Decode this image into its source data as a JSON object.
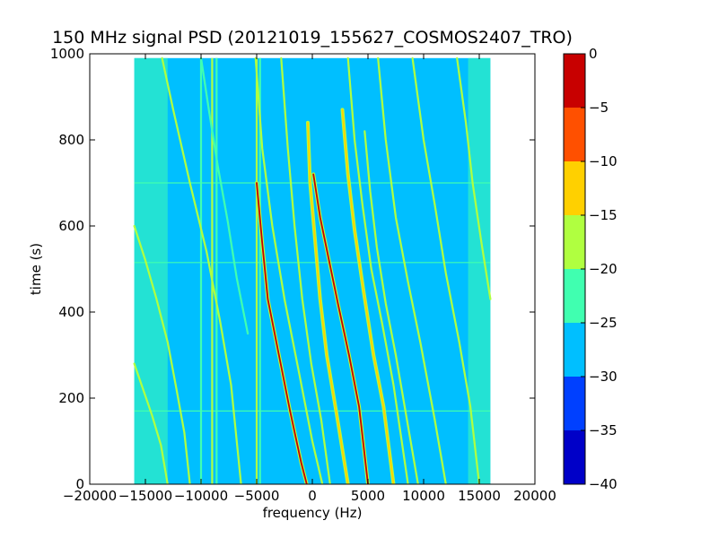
{
  "chart_data": {
    "type": "heatmap",
    "title": "150 MHz signal PSD (20121019_155627_COSMOS2407_TRO)",
    "xlabel": "frequency (Hz)",
    "ylabel": "time (s)",
    "xlim": [
      -20000,
      20000
    ],
    "ylim": [
      0,
      1000
    ],
    "x_ticks": [
      -20000,
      -15000,
      -10000,
      -5000,
      0,
      5000,
      10000,
      15000,
      20000
    ],
    "y_ticks": [
      0,
      200,
      400,
      600,
      800,
      1000
    ],
    "data_extent": {
      "x": [
        -16000,
        16000
      ],
      "y": [
        0,
        990
      ]
    },
    "background_level": -27.5,
    "edge_bands": [
      {
        "x": [
          -16000,
          -13000
        ],
        "level": -22.5
      },
      {
        "x": [
          14000,
          16000
        ],
        "level": -22.5
      }
    ],
    "traces": [
      {
        "points": [
          [
            -5100,
            990
          ],
          [
            -4500,
            780
          ],
          [
            -3600,
            600
          ],
          [
            -2500,
            430
          ],
          [
            -1200,
            260
          ],
          [
            0,
            100
          ],
          [
            900,
            0
          ]
        ],
        "level": -17.5
      },
      {
        "points": [
          [
            -5000,
            700
          ],
          [
            -4500,
            560
          ],
          [
            -4000,
            430
          ],
          [
            -3000,
            300
          ],
          [
            -2000,
            170
          ],
          [
            -1000,
            50
          ],
          [
            -500,
            0
          ]
        ],
        "level": -2.5
      },
      {
        "points": [
          [
            -2800,
            990
          ],
          [
            -2200,
            780
          ],
          [
            -1600,
            600
          ],
          [
            -900,
            430
          ],
          [
            -100,
            280
          ],
          [
            800,
            150
          ],
          [
            1600,
            0
          ]
        ],
        "level": -17.5
      },
      {
        "points": [
          [
            -400,
            840
          ],
          [
            -200,
            700
          ],
          [
            200,
            580
          ],
          [
            700,
            430
          ],
          [
            1300,
            300
          ],
          [
            2200,
            160
          ],
          [
            3200,
            0
          ]
        ],
        "level": -12.5
      },
      {
        "points": [
          [
            100,
            720
          ],
          [
            700,
            620
          ],
          [
            1500,
            520
          ],
          [
            2300,
            420
          ],
          [
            3300,
            300
          ],
          [
            4200,
            180
          ],
          [
            5000,
            0
          ]
        ],
        "level": -2.5
      },
      {
        "points": [
          [
            2700,
            870
          ],
          [
            3200,
            720
          ],
          [
            3800,
            590
          ],
          [
            4600,
            450
          ],
          [
            5500,
            300
          ],
          [
            6400,
            180
          ],
          [
            7300,
            0
          ]
        ],
        "level": -12.5
      },
      {
        "points": [
          [
            3200,
            990
          ],
          [
            3800,
            800
          ],
          [
            4500,
            650
          ],
          [
            5300,
            500
          ],
          [
            6300,
            370
          ],
          [
            7300,
            230
          ],
          [
            8600,
            0
          ]
        ],
        "level": -17.5
      },
      {
        "points": [
          [
            4700,
            820
          ],
          [
            5200,
            680
          ],
          [
            5800,
            550
          ],
          [
            6600,
            420
          ],
          [
            7500,
            300
          ],
          [
            8500,
            150
          ],
          [
            9500,
            0
          ]
        ],
        "level": -17.5
      },
      {
        "points": [
          [
            5900,
            990
          ],
          [
            6600,
            800
          ],
          [
            7500,
            620
          ],
          [
            8600,
            470
          ],
          [
            9700,
            330
          ],
          [
            11000,
            150
          ],
          [
            12000,
            0
          ]
        ],
        "level": -17.5
      },
      {
        "points": [
          [
            9000,
            990
          ],
          [
            10000,
            800
          ],
          [
            11000,
            650
          ],
          [
            12000,
            490
          ],
          [
            13200,
            330
          ],
          [
            14200,
            180
          ],
          [
            15000,
            0
          ]
        ],
        "level": -17.5
      },
      {
        "points": [
          [
            13000,
            990
          ],
          [
            13800,
            840
          ],
          [
            14400,
            700
          ],
          [
            15200,
            560
          ],
          [
            16000,
            430
          ]
        ],
        "level": -17.5
      },
      {
        "points": [
          [
            -13500,
            990
          ],
          [
            -12500,
            870
          ],
          [
            -11000,
            700
          ],
          [
            -9500,
            540
          ],
          [
            -8300,
            380
          ],
          [
            -7300,
            230
          ],
          [
            -6400,
            0
          ]
        ],
        "level": -17.5
      },
      {
        "points": [
          [
            -16000,
            600
          ],
          [
            -15000,
            520
          ],
          [
            -14000,
            430
          ],
          [
            -13000,
            330
          ],
          [
            -12200,
            220
          ],
          [
            -11500,
            120
          ],
          [
            -11000,
            0
          ]
        ],
        "level": -17.5
      },
      {
        "points": [
          [
            -16000,
            280
          ],
          [
            -15200,
            220
          ],
          [
            -14400,
            160
          ],
          [
            -13600,
            90
          ],
          [
            -13000,
            0
          ]
        ],
        "level": -17.5
      },
      {
        "points": [
          [
            -10000,
            990
          ],
          [
            -9300,
            870
          ],
          [
            -8500,
            740
          ],
          [
            -7600,
            610
          ],
          [
            -6800,
            480
          ],
          [
            -5800,
            350
          ]
        ],
        "level": -22.5
      }
    ],
    "vertical_lines": [
      {
        "x": -10000,
        "level": -22.5
      },
      {
        "x": -9000,
        "level": -17.5
      },
      {
        "x": -8600,
        "level": -22.5
      },
      {
        "x": -5000,
        "level": -17.5
      },
      {
        "x": -4700,
        "level": -22.5
      }
    ],
    "horizontal_lines": [
      {
        "y": 170,
        "level": -22.5
      },
      {
        "y": 515,
        "level": -22.5
      },
      {
        "y": 700,
        "level": -22.5
      }
    ],
    "colorbar": {
      "min": -40,
      "max": 0,
      "ticks": [
        -40,
        -35,
        -30,
        -25,
        -20,
        -15,
        -10,
        -5,
        0
      ],
      "bands": [
        {
          "from": -40,
          "to": -35,
          "color": "#0000c8"
        },
        {
          "from": -35,
          "to": -30,
          "color": "#0040ff"
        },
        {
          "from": -30,
          "to": -25,
          "color": "#00bfff"
        },
        {
          "from": -25,
          "to": -20,
          "color": "#40ffb0"
        },
        {
          "from": -20,
          "to": -15,
          "color": "#b0ff40"
        },
        {
          "from": -15,
          "to": -10,
          "color": "#ffd000"
        },
        {
          "from": -10,
          "to": -5,
          "color": "#ff5000"
        },
        {
          "from": -5,
          "to": 0,
          "color": "#c80000"
        }
      ]
    }
  }
}
